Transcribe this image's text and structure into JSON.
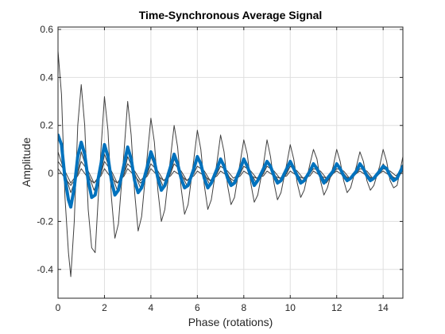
{
  "chart_data": {
    "type": "line",
    "title": "Time-Synchronous Average Signal",
    "xlabel": "Phase (rotations)",
    "ylabel": "Amplitude",
    "xlim": [
      0,
      14.85
    ],
    "ylim": [
      -0.52,
      0.61
    ],
    "xticks": [
      0,
      2,
      4,
      6,
      8,
      10,
      12,
      14
    ],
    "yticks": [
      -0.4,
      -0.2,
      0,
      0.2,
      0.4,
      0.6
    ],
    "xtick_labels": [
      "0",
      "2",
      "4",
      "6",
      "8",
      "10",
      "12",
      "14"
    ],
    "ytick_labels": [
      "-0.4",
      "-0.2",
      "0",
      "0.2",
      "0.4",
      "0.6"
    ],
    "grid": true,
    "box": true,
    "series": [
      {
        "style": "thin",
        "color": "#404040",
        "x": [
          0,
          0.15,
          0.3,
          0.45,
          0.55,
          0.7,
          0.85,
          1.0,
          1.15,
          1.3,
          1.45,
          1.6,
          1.85,
          2.0,
          2.15,
          2.3,
          2.45,
          2.6,
          2.85,
          3.0,
          3.15,
          3.3,
          3.45,
          3.6,
          3.85,
          4.0,
          4.15,
          4.3,
          4.45,
          4.6,
          4.85,
          5.0,
          5.15,
          5.3,
          5.45,
          5.6,
          5.85,
          6.0,
          6.15,
          6.3,
          6.45,
          6.6,
          6.85,
          7.0,
          7.15,
          7.3,
          7.45,
          7.6,
          7.85,
          8.0,
          8.15,
          8.3,
          8.45,
          8.6,
          8.85,
          9.0,
          9.15,
          9.3,
          9.45,
          9.6,
          9.85,
          10.0,
          10.15,
          10.3,
          10.45,
          10.6,
          10.85,
          11.0,
          11.15,
          11.3,
          11.45,
          11.6,
          11.85,
          12.0,
          12.15,
          12.3,
          12.45,
          12.6,
          12.85,
          13.0,
          13.15,
          13.3,
          13.45,
          13.6,
          13.85,
          14.0,
          14.15,
          14.3,
          14.45,
          14.6,
          14.85
        ],
        "y": [
          0.51,
          0.33,
          -0.1,
          -0.33,
          -0.43,
          -0.2,
          0.2,
          0.37,
          0.2,
          -0.15,
          -0.31,
          -0.33,
          0.1,
          0.32,
          0.18,
          -0.1,
          -0.27,
          -0.21,
          0.1,
          0.3,
          0.16,
          -0.08,
          -0.24,
          -0.18,
          0.08,
          0.23,
          0.13,
          -0.07,
          -0.2,
          -0.15,
          0.07,
          0.2,
          0.11,
          -0.06,
          -0.17,
          -0.13,
          0.06,
          0.18,
          0.1,
          -0.05,
          -0.15,
          -0.11,
          0.05,
          0.16,
          0.09,
          -0.05,
          -0.13,
          -0.1,
          0.05,
          0.14,
          0.08,
          -0.04,
          -0.12,
          -0.09,
          0.04,
          0.14,
          0.07,
          -0.04,
          -0.11,
          -0.08,
          0.04,
          0.12,
          0.06,
          -0.04,
          -0.1,
          -0.07,
          0.04,
          0.1,
          0.06,
          -0.03,
          -0.09,
          -0.06,
          0.03,
          0.1,
          0.05,
          -0.03,
          -0.08,
          -0.06,
          0.03,
          0.09,
          0.05,
          -0.03,
          -0.07,
          -0.05,
          0.03,
          0.1,
          0.05,
          -0.03,
          -0.06,
          -0.05,
          0.07
        ]
      },
      {
        "style": "thin",
        "color": "#404040",
        "x": [
          0,
          0.3,
          0.55,
          0.85,
          1.0,
          1.3,
          1.55,
          1.85,
          2.0,
          2.3,
          2.55,
          2.85,
          3.0,
          3.3,
          3.55,
          3.85,
          4.0,
          4.3,
          4.55,
          4.85,
          5.0,
          5.3,
          5.55,
          5.85,
          6.0,
          6.3,
          6.55,
          6.85,
          7.0,
          7.3,
          7.55,
          7.85,
          8.0,
          8.3,
          8.55,
          8.85,
          9.0,
          9.3,
          9.55,
          9.85,
          10.0,
          10.3,
          10.55,
          10.85,
          11.0,
          11.3,
          11.55,
          11.85,
          12.0,
          12.3,
          12.55,
          12.85,
          13.0,
          13.3,
          13.55,
          13.85,
          14.0,
          14.3,
          14.55,
          14.85
        ],
        "y": [
          0.09,
          0.0,
          -0.08,
          0.0,
          0.09,
          0.0,
          -0.07,
          0.0,
          0.08,
          0.0,
          -0.07,
          0.0,
          0.07,
          0.0,
          -0.06,
          0.0,
          0.07,
          0.0,
          -0.06,
          0.0,
          0.06,
          0.0,
          -0.05,
          0.0,
          0.06,
          0.0,
          -0.05,
          0.0,
          0.05,
          0.0,
          -0.05,
          0.0,
          0.05,
          0.0,
          -0.04,
          0.0,
          0.05,
          0.0,
          -0.04,
          0.0,
          0.05,
          0.0,
          -0.04,
          0.0,
          0.04,
          0.0,
          -0.04,
          0.0,
          0.04,
          0.0,
          -0.03,
          0.0,
          0.04,
          0.0,
          -0.03,
          0.0,
          0.04,
          0.0,
          -0.03,
          0.02
        ]
      },
      {
        "style": "thin",
        "color": "#404040",
        "x": [
          0,
          0.3,
          0.55,
          0.85,
          1.0,
          1.3,
          1.55,
          1.85,
          2.0,
          2.3,
          2.55,
          2.85,
          3.0,
          3.3,
          3.55,
          3.85,
          4.0,
          4.3,
          4.55,
          4.85,
          5.0,
          5.3,
          5.55,
          5.85,
          6.0,
          6.3,
          6.55,
          6.85,
          7.0,
          7.3,
          7.55,
          7.85,
          8.0,
          8.3,
          8.55,
          8.85,
          9.0,
          9.3,
          9.55,
          9.85,
          10.0,
          10.3,
          10.55,
          10.85,
          11.0,
          11.3,
          11.55,
          11.85,
          12.0,
          12.3,
          12.55,
          12.85,
          13.0,
          13.3,
          13.55,
          13.85,
          14.0,
          14.3,
          14.55,
          14.85
        ],
        "y": [
          0.05,
          0.01,
          -0.04,
          0.0,
          0.05,
          0.01,
          -0.04,
          0.0,
          0.05,
          0.01,
          -0.04,
          0.0,
          0.04,
          0.01,
          -0.03,
          0.0,
          0.04,
          0.01,
          -0.03,
          0.0,
          0.04,
          0.01,
          -0.03,
          0.0,
          0.03,
          0.01,
          -0.03,
          0.0,
          0.03,
          0.01,
          -0.02,
          0.0,
          0.03,
          0.01,
          -0.02,
          0.0,
          0.03,
          0.01,
          -0.02,
          0.0,
          0.03,
          0.01,
          -0.02,
          0.0,
          0.02,
          0.01,
          -0.02,
          0.0,
          0.02,
          0.01,
          -0.02,
          0.0,
          0.02,
          0.01,
          -0.02,
          0.0,
          0.02,
          0.01,
          -0.01,
          0.02
        ]
      },
      {
        "style": "thin",
        "color": "#404040",
        "x": [
          0,
          0.3,
          0.55,
          0.85,
          1.0,
          1.3,
          1.55,
          1.85,
          2.0,
          2.3,
          2.55,
          2.85,
          3.0,
          3.3,
          3.55,
          3.85,
          4.0,
          4.3,
          4.55,
          4.85,
          5.0,
          5.3,
          5.55,
          5.85,
          6.0,
          6.3,
          6.55,
          6.85,
          7.0,
          7.3,
          7.55,
          7.85,
          8.0,
          8.3,
          8.55,
          8.85,
          9.0,
          9.3,
          9.55,
          9.85,
          10.0,
          10.3,
          10.55,
          10.85,
          11.0,
          11.3,
          11.55,
          11.85,
          12.0,
          12.3,
          12.55,
          12.85,
          13.0,
          13.3,
          13.55,
          13.85,
          14.0,
          14.3,
          14.55,
          14.85
        ],
        "y": [
          0.02,
          -0.02,
          -0.05,
          -0.01,
          0.02,
          -0.02,
          -0.04,
          -0.01,
          0.02,
          -0.02,
          -0.04,
          -0.01,
          0.02,
          -0.01,
          -0.04,
          -0.01,
          0.02,
          -0.01,
          -0.03,
          -0.01,
          0.01,
          -0.01,
          -0.03,
          -0.01,
          0.01,
          -0.01,
          -0.03,
          -0.01,
          0.01,
          -0.01,
          -0.03,
          -0.01,
          0.01,
          -0.01,
          -0.02,
          -0.01,
          0.01,
          -0.01,
          -0.02,
          -0.01,
          0.01,
          -0.01,
          -0.02,
          -0.01,
          0.01,
          -0.01,
          -0.02,
          0.0,
          0.01,
          -0.01,
          -0.02,
          0.0,
          0.01,
          -0.01,
          -0.02,
          0.0,
          0.01,
          -0.01,
          -0.02,
          0.01
        ]
      },
      {
        "style": "thick",
        "color": "#0072BD",
        "x": [
          0,
          0.15,
          0.3,
          0.45,
          0.55,
          0.7,
          0.85,
          1.0,
          1.15,
          1.3,
          1.45,
          1.6,
          1.85,
          2.0,
          2.15,
          2.3,
          2.45,
          2.6,
          2.85,
          3.0,
          3.15,
          3.3,
          3.45,
          3.6,
          3.85,
          4.0,
          4.15,
          4.3,
          4.45,
          4.6,
          4.85,
          5.0,
          5.15,
          5.3,
          5.45,
          5.6,
          5.85,
          6.0,
          6.15,
          6.3,
          6.45,
          6.6,
          6.85,
          7.0,
          7.15,
          7.3,
          7.45,
          7.6,
          7.85,
          8.0,
          8.15,
          8.3,
          8.45,
          8.6,
          8.85,
          9.0,
          9.15,
          9.3,
          9.45,
          9.6,
          9.85,
          10.0,
          10.15,
          10.3,
          10.45,
          10.6,
          10.85,
          11.0,
          11.15,
          11.3,
          11.45,
          11.6,
          11.85,
          12.0,
          12.15,
          12.3,
          12.45,
          12.6,
          12.85,
          13.0,
          13.15,
          13.3,
          13.45,
          13.6,
          13.85,
          14.0,
          14.15,
          14.3,
          14.45,
          14.6,
          14.85
        ],
        "y": [
          0.16,
          0.12,
          -0.02,
          -0.11,
          -0.14,
          -0.06,
          0.07,
          0.13,
          0.08,
          -0.03,
          -0.1,
          -0.09,
          0.04,
          0.12,
          0.07,
          -0.03,
          -0.09,
          -0.07,
          0.04,
          0.11,
          0.06,
          -0.03,
          -0.08,
          -0.06,
          0.03,
          0.09,
          0.05,
          -0.02,
          -0.07,
          -0.05,
          0.03,
          0.08,
          0.04,
          -0.02,
          -0.06,
          -0.05,
          0.02,
          0.07,
          0.04,
          -0.02,
          -0.06,
          -0.04,
          0.02,
          0.06,
          0.03,
          -0.02,
          -0.05,
          -0.04,
          0.02,
          0.06,
          0.03,
          -0.01,
          -0.05,
          -0.03,
          0.02,
          0.05,
          0.03,
          -0.01,
          -0.04,
          -0.03,
          0.02,
          0.05,
          0.02,
          -0.01,
          -0.04,
          -0.03,
          0.01,
          0.04,
          0.02,
          -0.01,
          -0.04,
          -0.02,
          0.01,
          0.04,
          0.02,
          -0.01,
          -0.03,
          -0.02,
          0.01,
          0.04,
          0.02,
          -0.01,
          -0.03,
          -0.02,
          0.01,
          0.03,
          0.02,
          -0.01,
          -0.03,
          -0.02,
          0.03
        ]
      }
    ]
  }
}
